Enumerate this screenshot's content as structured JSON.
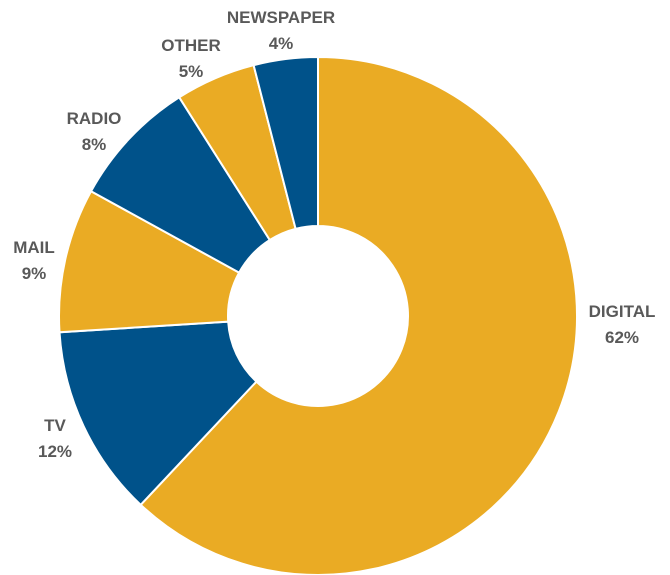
{
  "chart_data": {
    "type": "pie",
    "variant": "donut",
    "title": "",
    "slices": [
      {
        "label": "DIGITAL",
        "value": 62,
        "display": "62%",
        "color": "#EAAB24"
      },
      {
        "label": "TV",
        "value": 12,
        "display": "12%",
        "color": "#00528A"
      },
      {
        "label": "MAIL",
        "value": 9,
        "display": "9%",
        "color": "#EAAB24"
      },
      {
        "label": "RADIO",
        "value": 8,
        "display": "8%",
        "color": "#00528A"
      },
      {
        "label": "OTHER",
        "value": 5,
        "display": "5%",
        "color": "#EAAB24"
      },
      {
        "label": "NEWSPAPER",
        "value": 4,
        "display": "4%",
        "color": "#00528A"
      }
    ],
    "start_angle": "12 o'clock",
    "direction": "clockwise",
    "legend": "none"
  }
}
